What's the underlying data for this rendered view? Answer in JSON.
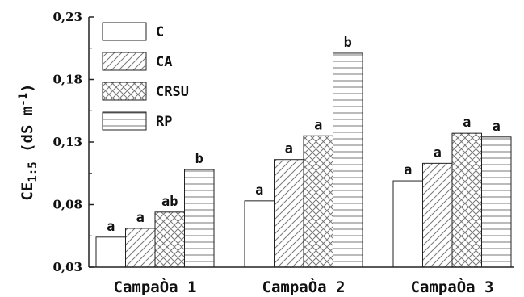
{
  "chart_data": {
    "type": "bar",
    "ylabel": {
      "main": "CE",
      "subscript": "1:5",
      "unit": "(dS m",
      "superscript": "-1",
      "close": ")"
    },
    "ylim": [
      0.03,
      0.23
    ],
    "yticks": [
      0.03,
      0.08,
      0.13,
      0.18,
      0.23
    ],
    "ytick_labels": [
      "0,03",
      "0,08",
      "0,13",
      "0,18",
      "0,23"
    ],
    "categories": [
      "CampaÒa 1",
      "CampaÒa 2",
      "CampaÒa 3"
    ],
    "legend_position": "top-left",
    "grid": false,
    "series": [
      {
        "name": "C",
        "pattern": "none",
        "values": [
          0.054,
          0.083,
          0.099
        ],
        "letters": [
          "a",
          "a",
          "a"
        ]
      },
      {
        "name": "CA",
        "pattern": "diagonal",
        "values": [
          0.061,
          0.116,
          0.113
        ],
        "letters": [
          "a",
          "a",
          "a"
        ]
      },
      {
        "name": "CRSU",
        "pattern": "crosshatch",
        "values": [
          0.074,
          0.135,
          0.137
        ],
        "letters": [
          "ab",
          "a",
          "a"
        ]
      },
      {
        "name": "RP",
        "pattern": "horizontal",
        "values": [
          0.108,
          0.201,
          0.134
        ],
        "letters": [
          "b",
          "b",
          "a"
        ]
      }
    ]
  }
}
